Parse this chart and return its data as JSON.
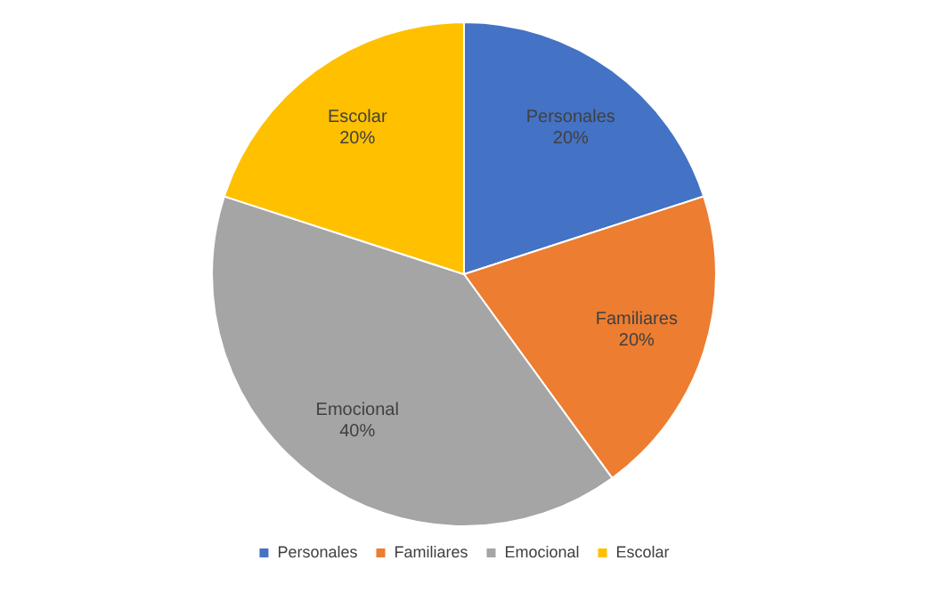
{
  "chart_data": {
    "type": "pie",
    "categories": [
      "Personales",
      "Familiares",
      "Emocional",
      "Escolar"
    ],
    "values": [
      20,
      20,
      40,
      20
    ],
    "colors": [
      "#4472c4",
      "#ed7d31",
      "#a5a5a5",
      "#ffc000"
    ],
    "value_labels": [
      "20%",
      "20%",
      "40%",
      "20%"
    ],
    "legend": "bottom"
  }
}
